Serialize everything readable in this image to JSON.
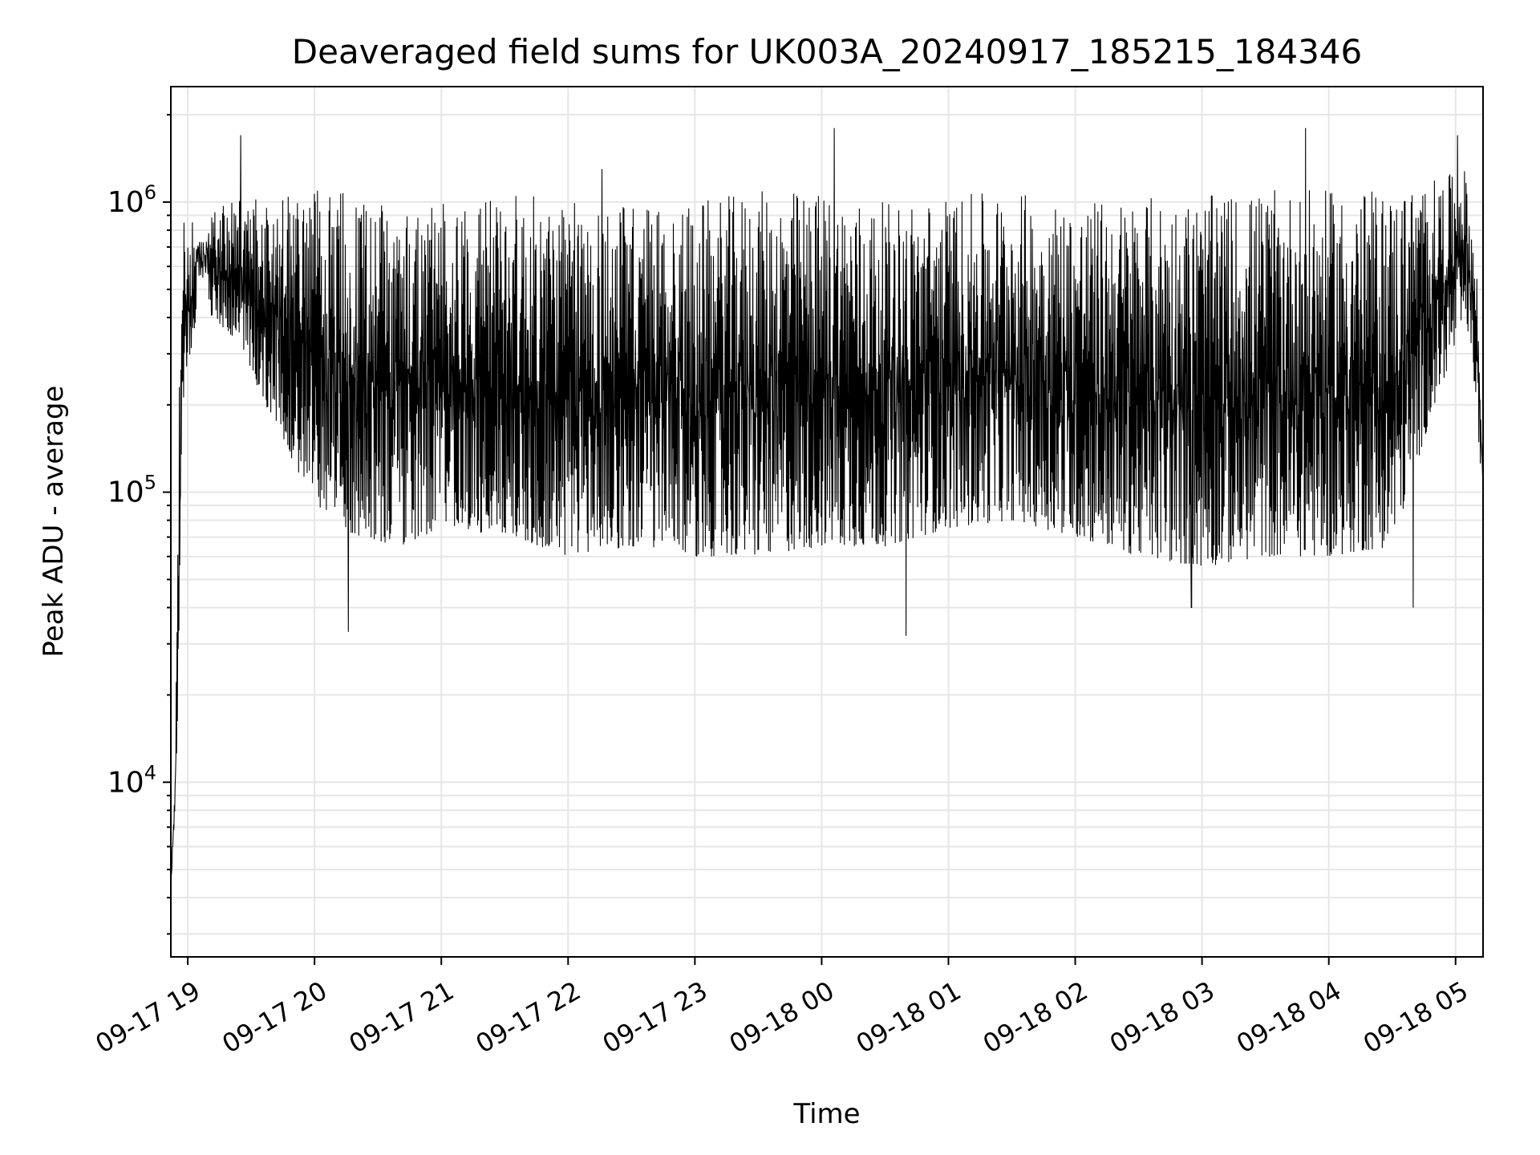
{
  "chart_data": {
    "type": "line",
    "title": "Deaveraged field sums for UK003A_20240917_185215_184346",
    "xlabel": "Time",
    "ylabel": "Peak ADU - average",
    "yscale": "log",
    "ylim": [
      2500,
      2500000
    ],
    "xlim": [
      "2024-09-17 18:52",
      "2024-09-18 05:13"
    ],
    "grid": true,
    "grid_color": "#e6e6e6",
    "line_color": "#000000",
    "xticks": [
      {
        "t": "2024-09-17 19:00",
        "label": "09-17 19"
      },
      {
        "t": "2024-09-17 20:00",
        "label": "09-17 20"
      },
      {
        "t": "2024-09-17 21:00",
        "label": "09-17 21"
      },
      {
        "t": "2024-09-17 22:00",
        "label": "09-17 22"
      },
      {
        "t": "2024-09-17 23:00",
        "label": "09-17 23"
      },
      {
        "t": "2024-09-18 00:00",
        "label": "09-18 00"
      },
      {
        "t": "2024-09-18 01:00",
        "label": "09-18 01"
      },
      {
        "t": "2024-09-18 02:00",
        "label": "09-18 02"
      },
      {
        "t": "2024-09-18 03:00",
        "label": "09-18 03"
      },
      {
        "t": "2024-09-18 04:00",
        "label": "09-18 04"
      },
      {
        "t": "2024-09-18 05:00",
        "label": "09-18 05"
      }
    ],
    "yticks": [
      {
        "value": 10000,
        "base": "10",
        "exp": "4"
      },
      {
        "value": 100000,
        "base": "10",
        "exp": "5"
      },
      {
        "value": 1000000,
        "base": "10",
        "exp": "6"
      }
    ],
    "series": [
      {
        "envelope": [
          {
            "t": "2024-09-17 18:52",
            "low": 4000,
            "high": 5000
          },
          {
            "t": "2024-09-17 18:54",
            "low": 7000,
            "high": 11000
          },
          {
            "t": "2024-09-17 18:56",
            "low": 30000,
            "high": 230000
          },
          {
            "t": "2024-09-17 18:58",
            "low": 200000,
            "high": 850000
          },
          {
            "t": "2024-09-17 19:05",
            "low": 450000,
            "high": 900000
          },
          {
            "t": "2024-09-17 19:20",
            "low": 350000,
            "high": 1000000
          },
          {
            "t": "2024-09-17 19:40",
            "low": 180000,
            "high": 1050000
          },
          {
            "t": "2024-09-17 20:00",
            "low": 90000,
            "high": 1100000
          },
          {
            "t": "2024-09-17 20:20",
            "low": 70000,
            "high": 1100000
          },
          {
            "t": "2024-09-17 20:40",
            "low": 65000,
            "high": 1050000
          },
          {
            "t": "2024-09-17 21:00",
            "low": 75000,
            "high": 1000000
          },
          {
            "t": "2024-09-17 21:30",
            "low": 70000,
            "high": 1100000
          },
          {
            "t": "2024-09-17 22:00",
            "low": 60000,
            "high": 1000000
          },
          {
            "t": "2024-09-17 22:30",
            "low": 65000,
            "high": 1000000
          },
          {
            "t": "2024-09-17 23:00",
            "low": 60000,
            "high": 1000000
          },
          {
            "t": "2024-09-17 23:30",
            "low": 60000,
            "high": 1100000
          },
          {
            "t": "2024-09-18 00:00",
            "low": 65000,
            "high": 1100000
          },
          {
            "t": "2024-09-18 00:30",
            "low": 65000,
            "high": 1000000
          },
          {
            "t": "2024-09-18 01:00",
            "low": 75000,
            "high": 1050000
          },
          {
            "t": "2024-09-18 01:30",
            "low": 80000,
            "high": 1100000
          },
          {
            "t": "2024-09-18 02:00",
            "low": 70000,
            "high": 1000000
          },
          {
            "t": "2024-09-18 02:30",
            "low": 60000,
            "high": 1050000
          },
          {
            "t": "2024-09-18 03:00",
            "low": 55000,
            "high": 1050000
          },
          {
            "t": "2024-09-18 03:30",
            "low": 60000,
            "high": 1100000
          },
          {
            "t": "2024-09-18 04:00",
            "low": 60000,
            "high": 1100000
          },
          {
            "t": "2024-09-18 04:30",
            "low": 65000,
            "high": 1100000
          },
          {
            "t": "2024-09-18 04:50",
            "low": 200000,
            "high": 1200000
          },
          {
            "t": "2024-09-18 05:05",
            "low": 400000,
            "high": 1300000
          },
          {
            "t": "2024-09-18 05:10",
            "low": 200000,
            "high": 600000
          },
          {
            "t": "2024-09-18 05:13",
            "low": 80000,
            "high": 150000
          }
        ],
        "outliers": [
          {
            "t": "2024-09-17 19:25",
            "value": 1700000
          },
          {
            "t": "2024-09-17 20:16",
            "value": 33000
          },
          {
            "t": "2024-09-17 22:16",
            "value": 1300000
          },
          {
            "t": "2024-09-18 00:06",
            "value": 1800000
          },
          {
            "t": "2024-09-18 00:40",
            "value": 32000
          },
          {
            "t": "2024-09-18 02:55",
            "value": 40000
          },
          {
            "t": "2024-09-18 03:49",
            "value": 1800000
          },
          {
            "t": "2024-09-18 04:40",
            "value": 40000
          },
          {
            "t": "2024-09-18 05:01",
            "value": 1700000
          }
        ]
      }
    ]
  }
}
